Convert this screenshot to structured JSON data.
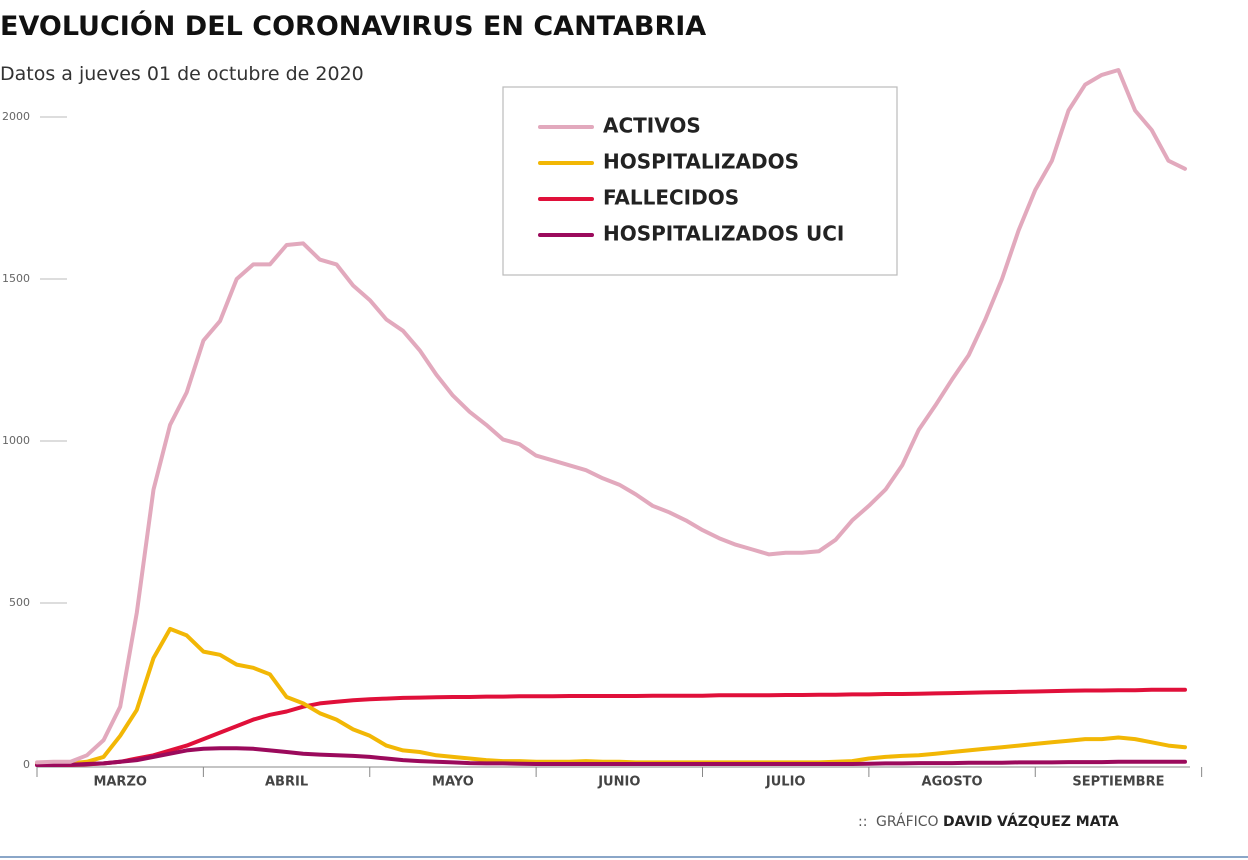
{
  "chart_data": {
    "type": "line",
    "title": "EVOLUCIÓN DEL CORONAVIRUS EN CANTABRIA",
    "subtitle": "Datos a jueves 01 de octubre de 2020",
    "credit_prefix": "GRÁFICO",
    "credit_author": "DAVID VÁZQUEZ MATA",
    "categories": [
      null,
      null,
      null,
      null,
      null,
      "MARZO",
      null,
      null,
      null,
      null,
      null,
      null,
      null,
      null,
      null,
      "ABRIL",
      null,
      null,
      null,
      null,
      null,
      null,
      null,
      null,
      null,
      "MAYO",
      null,
      null,
      null,
      null,
      null,
      null,
      null,
      null,
      null,
      "JUNIO",
      null,
      null,
      null,
      null,
      null,
      null,
      null,
      null,
      null,
      "JULIO",
      null,
      null,
      null,
      null,
      null,
      null,
      null,
      null,
      null,
      "AGOSTO",
      null,
      null,
      null,
      null,
      null,
      null,
      null,
      null,
      null,
      "SEPTIEMBRE",
      null,
      null,
      null,
      null
    ],
    "ylim": [
      0,
      2200
    ],
    "yticks": [
      0,
      500,
      1000,
      1500,
      2000
    ],
    "grid": false,
    "series": [
      {
        "name": "ACTIVOS",
        "color": "#e2a9bd",
        "values": [
          8,
          10,
          10,
          30,
          77,
          180,
          470,
          850,
          1050,
          1150,
          1310,
          1370,
          1500,
          1545,
          1545,
          1605,
          1610,
          1560,
          1545,
          1480,
          1435,
          1375,
          1340,
          1280,
          1205,
          1140,
          1090,
          1050,
          1005,
          990,
          955,
          940,
          925,
          910,
          885,
          865,
          835,
          800,
          780,
          755,
          725,
          700,
          680,
          665,
          650,
          655,
          655,
          660,
          695,
          755,
          800,
          850,
          925,
          1035,
          1110,
          1190,
          1265,
          1375,
          1500,
          1650,
          1775,
          1865,
          2020,
          2100,
          2130,
          2145,
          2020,
          1960,
          1865,
          1840
        ]
      },
      {
        "name": "HOSPITALIZADOS",
        "color": "#f2b705",
        "values": [
          5,
          5,
          5,
          10,
          25,
          90,
          170,
          330,
          420,
          400,
          350,
          340,
          310,
          300,
          280,
          210,
          190,
          160,
          140,
          110,
          90,
          60,
          45,
          40,
          30,
          25,
          20,
          15,
          12,
          12,
          10,
          10,
          10,
          12,
          10,
          10,
          8,
          8,
          8,
          8,
          8,
          8,
          8,
          8,
          8,
          8,
          8,
          8,
          10,
          12,
          20,
          25,
          28,
          30,
          35,
          40,
          45,
          50,
          55,
          60,
          65,
          70,
          75,
          80,
          80,
          85,
          80,
          70,
          60,
          55
        ]
      },
      {
        "name": "FALLECIDOS",
        "color": "#e0103a",
        "values": [
          0,
          0,
          0,
          2,
          5,
          10,
          20,
          30,
          45,
          60,
          80,
          100,
          120,
          140,
          155,
          165,
          180,
          190,
          195,
          200,
          203,
          205,
          207,
          208,
          209,
          210,
          210,
          211,
          211,
          212,
          212,
          212,
          213,
          213,
          213,
          213,
          213,
          214,
          214,
          214,
          214,
          215,
          215,
          215,
          215,
          216,
          216,
          217,
          217,
          218,
          218,
          219,
          219,
          220,
          221,
          222,
          223,
          224,
          225,
          226,
          227,
          228,
          229,
          230,
          230,
          231,
          231,
          232,
          232,
          232
        ]
      },
      {
        "name": "HOSPITALIZADOS UCI",
        "color": "#9b0a5c",
        "values": [
          0,
          0,
          1,
          3,
          5,
          10,
          15,
          25,
          35,
          45,
          50,
          52,
          52,
          50,
          45,
          40,
          35,
          32,
          30,
          28,
          25,
          20,
          15,
          12,
          10,
          8,
          6,
          5,
          5,
          4,
          3,
          3,
          3,
          3,
          3,
          3,
          3,
          3,
          3,
          3,
          3,
          3,
          3,
          3,
          3,
          3,
          3,
          3,
          3,
          3,
          4,
          5,
          5,
          6,
          6,
          6,
          7,
          7,
          7,
          8,
          8,
          8,
          9,
          9,
          9,
          10,
          10,
          10,
          10,
          10
        ]
      }
    ]
  }
}
